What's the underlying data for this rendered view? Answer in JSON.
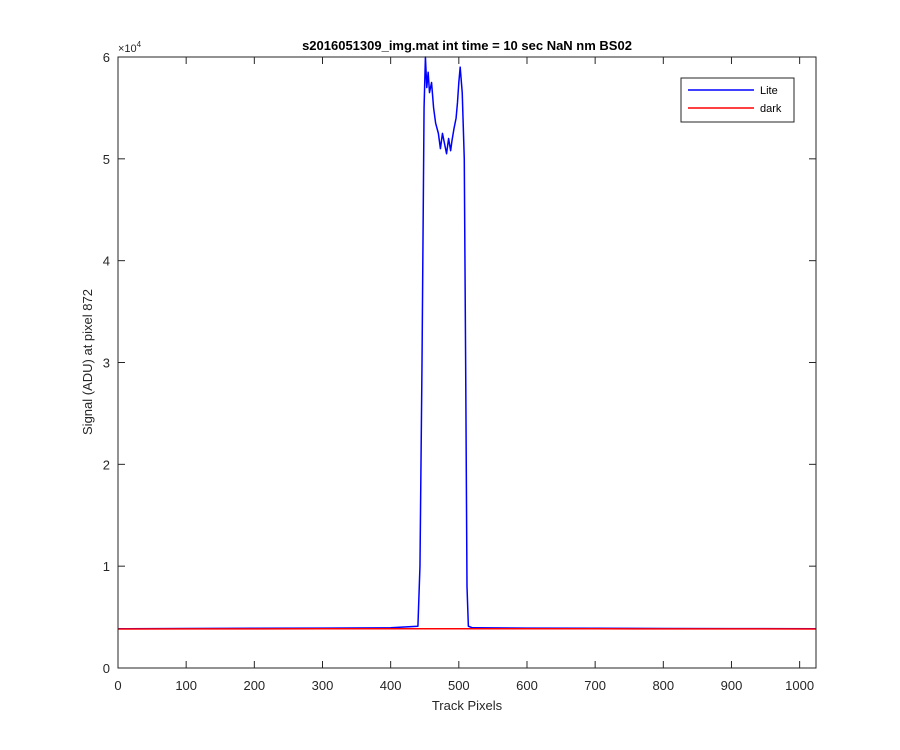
{
  "chart_data": {
    "type": "line",
    "title": "s2016051309_img.mat int time = 10 sec  NaN nm BS02",
    "xlabel": "Track Pixels",
    "ylabel": "Signal (ADU) at pixel 872",
    "y_multiplier_label": "×10",
    "y_multiplier_exponent": "4",
    "xlim": [
      0,
      1024
    ],
    "ylim": [
      0,
      60000
    ],
    "xticks": [
      0,
      100,
      200,
      300,
      400,
      500,
      600,
      700,
      800,
      900,
      1000
    ],
    "yticks": [
      0,
      10000,
      20000,
      30000,
      40000,
      50000,
      60000
    ],
    "ytick_labels": [
      "0",
      "1",
      "2",
      "3",
      "4",
      "5",
      "6"
    ],
    "grid": false,
    "legend_position": "top-right",
    "series": [
      {
        "name": "Lite",
        "color": "#0000ff",
        "x": [
          0,
          100,
          200,
          300,
          400,
          440,
          443,
          446,
          449,
          451,
          453,
          455,
          457,
          460,
          463,
          466,
          470,
          473,
          476,
          479,
          482,
          485,
          488,
          490,
          493,
          496,
          498,
          500,
          502,
          505,
          508,
          510,
          512,
          514,
          520,
          600,
          700,
          800,
          900,
          1024
        ],
        "y": [
          3850,
          3880,
          3900,
          3920,
          3950,
          4100,
          10000,
          30000,
          55000,
          60000,
          57000,
          58500,
          56500,
          57500,
          55000,
          53500,
          52500,
          51000,
          52500,
          51500,
          50500,
          52000,
          50800,
          51800,
          53000,
          54000,
          55500,
          57500,
          59000,
          56500,
          50000,
          30000,
          8000,
          4100,
          3950,
          3920,
          3900,
          3880,
          3870,
          3850
        ]
      },
      {
        "name": "dark",
        "color": "#ff0000",
        "x": [
          0,
          100,
          200,
          300,
          400,
          500,
          600,
          700,
          800,
          900,
          1024
        ],
        "y": [
          3830,
          3840,
          3840,
          3850,
          3850,
          3850,
          3850,
          3850,
          3840,
          3840,
          3830
        ]
      }
    ]
  }
}
